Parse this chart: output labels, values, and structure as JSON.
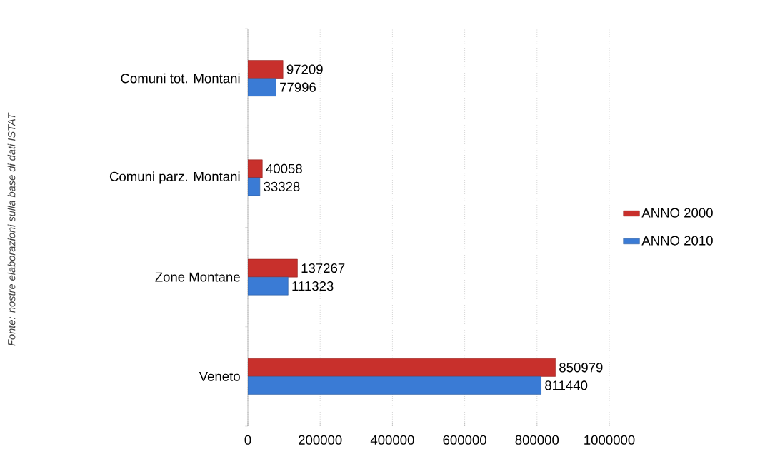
{
  "chart_data": {
    "type": "bar",
    "orientation": "horizontal",
    "categories": [
      "Comuni tot. Montani",
      "Comuni parz. Montani",
      "Zone Montane",
      "Veneto"
    ],
    "series": [
      {
        "name": "ANNO 2000",
        "color": "#c8302c",
        "values": [
          97209,
          40058,
          137267,
          850979
        ]
      },
      {
        "name": "ANNO 2010",
        "color": "#3a7bd5",
        "values": [
          77996,
          33328,
          111323,
          811440
        ]
      }
    ],
    "xlim": [
      0,
      1000000
    ],
    "xticks": [
      0,
      200000,
      400000,
      600000,
      800000,
      1000000
    ],
    "grid": "x",
    "legend": "right",
    "data_labels": true,
    "annotations": [
      "Fonte: nostre elaborazioni sulla base di dati ISTAT"
    ]
  }
}
